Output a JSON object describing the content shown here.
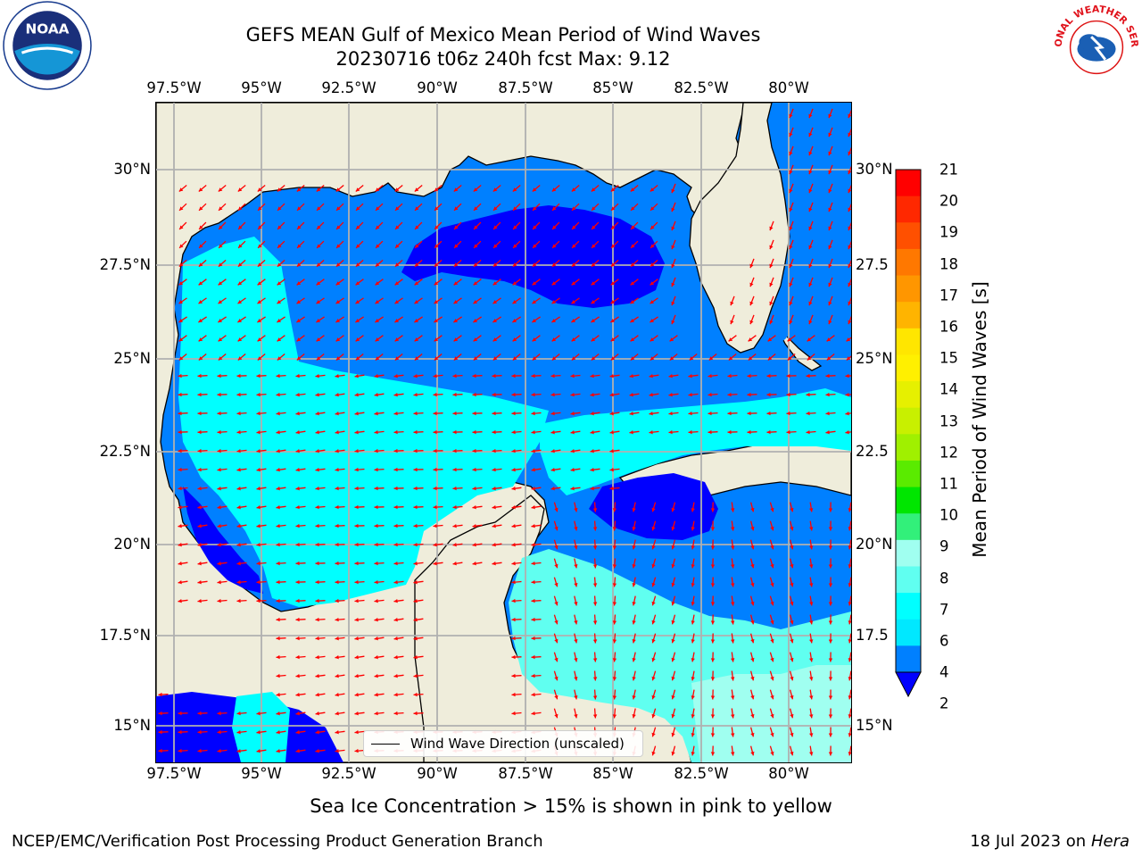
{
  "header": {
    "title_line1": "GEFS MEAN Gulf of Mexico Mean Period of Wind Waves",
    "title_line2": "20230716 t06z 240h fcst   Max: 9.12"
  },
  "logos": {
    "noaa": {
      "icon": "noaa-logo",
      "text": "NOAA"
    },
    "nws": {
      "icon": "nws-logo",
      "text": "NATIONAL WEATHER SERVICE"
    }
  },
  "axes": {
    "lon_ticks": [
      "97.5°W",
      "95°W",
      "92.5°W",
      "90°W",
      "87.5°W",
      "85°W",
      "82.5°W",
      "80°W"
    ],
    "lat_ticks_left": [
      "30°N",
      "27.5°N",
      "25°N",
      "22.5°N",
      "20°N",
      "17.5°N",
      "15°N"
    ],
    "lat_ticks_right": [
      "30°N",
      "27.5",
      "25°N",
      "22.5",
      "20°N",
      "17.5",
      "15°N"
    ]
  },
  "map": {
    "land_color": "#efeddb",
    "grid_color": "#b0b0b0",
    "arrow_color": "#ff0000"
  },
  "colorbar": {
    "label": "Mean Period of Wind Waves [s]",
    "ticks": [
      "21",
      "20",
      "19",
      "18",
      "17",
      "16",
      "15",
      "14",
      "13",
      "12",
      "11",
      "10",
      "9",
      "8",
      "7",
      "6",
      "4",
      "2"
    ],
    "colors": [
      "#ff0000",
      "#ff2800",
      "#ff5000",
      "#ff7800",
      "#ff9600",
      "#ffb400",
      "#ffe600",
      "#fff000",
      "#e6f000",
      "#c8f000",
      "#a0f000",
      "#5aeb00",
      "#00e600",
      "#32f07a",
      "#a0fff0",
      "#60fff0",
      "#00ffff",
      "#00e8ff",
      "#0080ff"
    ],
    "under_color": "#0000ff"
  },
  "legend": {
    "label": "Wind Wave Direction (unscaled)"
  },
  "caption": "Sea Ice Concentration > 15% is shown in pink to yellow",
  "footer": {
    "left": "NCEP/EMC/Verification Post Processing Product Generation Branch",
    "date": "18 Jul 2023 on ",
    "host": "Hera"
  }
}
